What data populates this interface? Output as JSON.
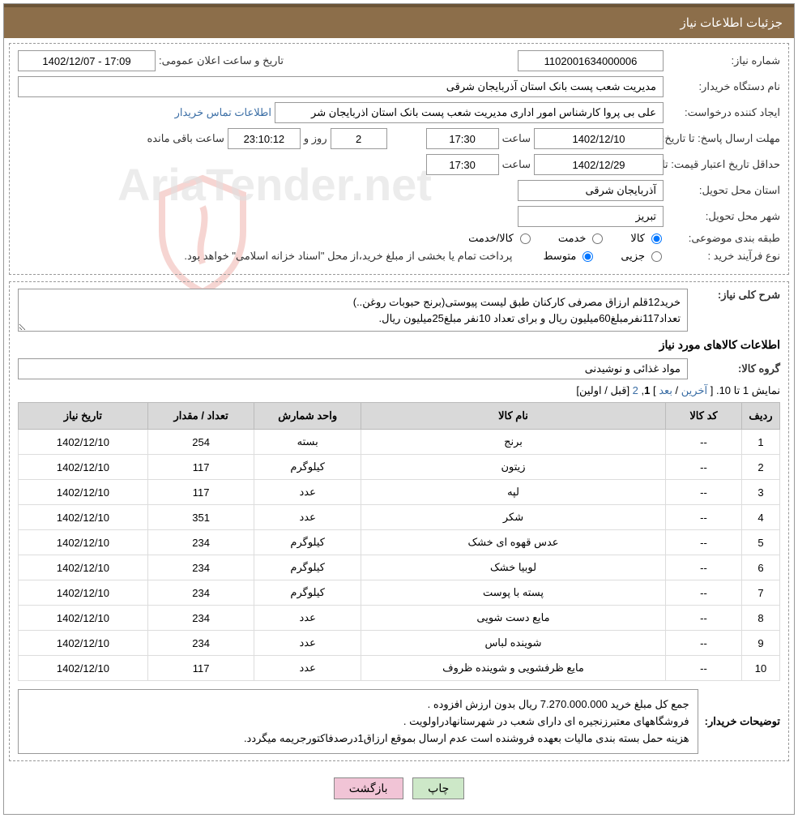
{
  "header": {
    "title": "جزئیات اطلاعات نیاز"
  },
  "info": {
    "need_number_label": "شماره نیاز:",
    "need_number": "1102001634000006",
    "announce_datetime_label": "تاریخ و ساعت اعلان عمومی:",
    "announce_datetime": "1402/12/07 - 17:09",
    "buyer_org_label": "نام دستگاه خریدار:",
    "buyer_org": "مدیریت شعب پست بانک استان آذربایجان شرقی",
    "requester_label": "ایجاد کننده درخواست:",
    "requester": "علی بی پروا کارشناس امور اداری مدیریت شعب پست بانک استان اذربایجان شر",
    "contact_link": "اطلاعات تماس خریدار",
    "deadline_label": "مهلت ارسال پاسخ:",
    "deadline_to_label": "تا تاریخ:",
    "deadline_date": "1402/12/10",
    "time_label": "ساعت",
    "deadline_time": "17:30",
    "days": "2",
    "days_and_label": "روز و",
    "countdown": "23:10:12",
    "remaining_label": "ساعت باقی مانده",
    "validity_label": "حداقل تاریخ اعتبار قیمت:",
    "validity_to_label": "تا تاریخ:",
    "validity_date": "1402/12/29",
    "validity_time": "17:30",
    "province_label": "استان محل تحویل:",
    "province": "آذربایجان شرقی",
    "city_label": "شهر محل تحویل:",
    "city": "تبریز",
    "category_label": "طبقه بندی موضوعی:",
    "cat_goods": "کالا",
    "cat_service": "خدمت",
    "cat_goods_service": "کالا/خدمت",
    "purchase_type_label": "نوع فرآیند خرید :",
    "pt_partial": "جزیی",
    "pt_medium": "متوسط",
    "purchase_note": "پرداخت تمام یا بخشی از مبلغ خرید،از محل \"اسناد خزانه اسلامی\" خواهد بود."
  },
  "desc": {
    "label": "شرح کلی نیاز:",
    "line1": "خرید12قلم ارزاق مصرفی کارکنان طبق لیست پیوستی(برنج حبوبات روغن..)",
    "line2": "تعداد117نفرمبلغ60میلیون ریال و برای تعداد 10نفر مبلغ25میلیون ریال."
  },
  "list": {
    "title": "اطلاعات کالاهای مورد نیاز",
    "group_label": "گروه کالا:",
    "group_value": "مواد غذائی و نوشیدنی",
    "pagination_prefix": "نمایش 1 تا 10. [ ",
    "pg_last": "آخرین",
    "pg_sep1": " / ",
    "pg_next": "بعد",
    "pg_sep2": " ] ",
    "pg_current": "1",
    "pg_comma": ", ",
    "pg_2": "2",
    "pg_suffix": " [قبل / اولین]",
    "columns": [
      "ردیف",
      "کد کالا",
      "نام کالا",
      "واحد شمارش",
      "تعداد / مقدار",
      "تاریخ نیاز"
    ],
    "rows": [
      [
        "1",
        "--",
        "برنج",
        "بسته",
        "254",
        "1402/12/10"
      ],
      [
        "2",
        "--",
        "زیتون",
        "کیلوگرم",
        "117",
        "1402/12/10"
      ],
      [
        "3",
        "--",
        "لپه",
        "عدد",
        "117",
        "1402/12/10"
      ],
      [
        "4",
        "--",
        "شکر",
        "عدد",
        "351",
        "1402/12/10"
      ],
      [
        "5",
        "--",
        "عدس قهوه ای خشک",
        "کیلوگرم",
        "234",
        "1402/12/10"
      ],
      [
        "6",
        "--",
        "لوبیا خشک",
        "کیلوگرم",
        "234",
        "1402/12/10"
      ],
      [
        "7",
        "--",
        "پسته با پوست",
        "کیلوگرم",
        "234",
        "1402/12/10"
      ],
      [
        "8",
        "--",
        "مایع دست شویی",
        "عدد",
        "234",
        "1402/12/10"
      ],
      [
        "9",
        "--",
        "شوینده لباس",
        "عدد",
        "234",
        "1402/12/10"
      ],
      [
        "10",
        "--",
        "مایع ظرفشویی و شوینده ظروف",
        "عدد",
        "117",
        "1402/12/10"
      ]
    ],
    "col_widths": [
      "5%",
      "10%",
      "40%",
      "14%",
      "14%",
      "17%"
    ]
  },
  "buyer_notes": {
    "label": "توضیحات خریدار:",
    "line1": "جمع کل مبلغ خرید 7.270.000.000 ریال بدون ارزش افزوده .",
    "line2": "فروشگاههای معتبرزنجیره ای دارای شعب در شهرستانهادراولویت .",
    "line3": "هزینه حمل بسته بندی مالیات بعهده فروشنده است عدم ارسال بموقع ارزاق1درصدفاکتورجریمه میگردد."
  },
  "buttons": {
    "print": "چاپ",
    "back": "بازگشت"
  },
  "watermark": {
    "text": "AriaTender.net"
  },
  "colors": {
    "header_bg": "#8c6e4a",
    "header_border": "#6b5437",
    "th_bg": "#d9d9d9",
    "btn_print_bg": "#cde8c8",
    "btn_back_bg": "#f1c4d6",
    "link": "#3b6ea5"
  }
}
